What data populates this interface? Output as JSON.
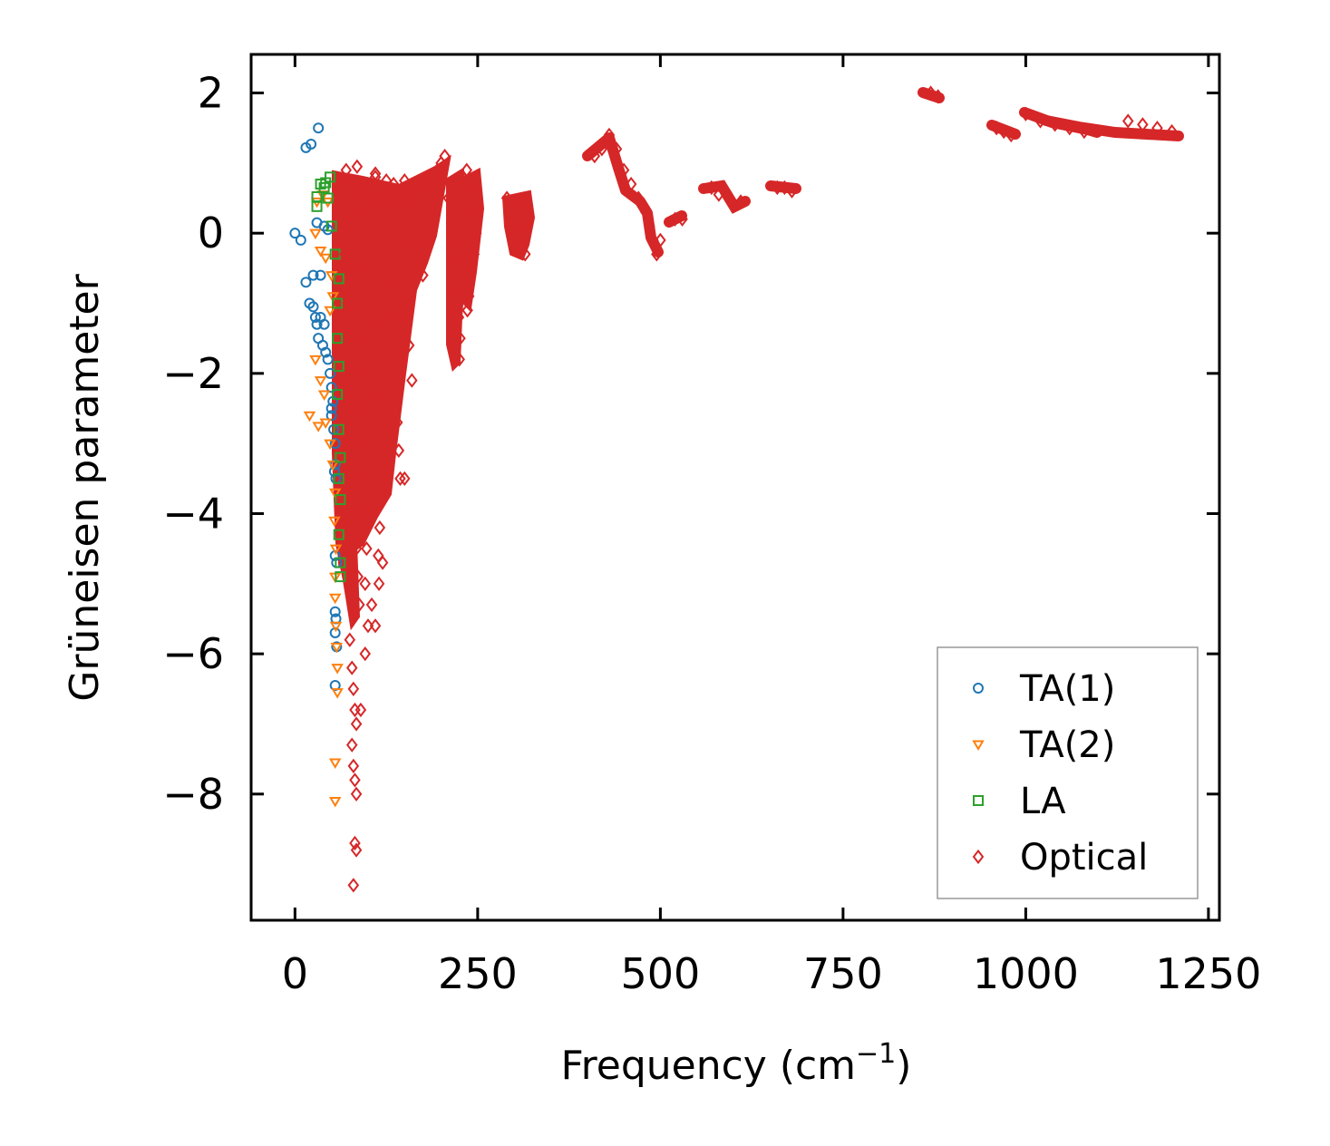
{
  "chart_data": {
    "type": "scatter",
    "title": "",
    "xlabel_base": "Frequency (cm",
    "xlabel_sup": "−1",
    "xlabel_end": ")",
    "ylabel": "Grüneisen parameter",
    "xlim": [
      -60,
      1265
    ],
    "ylim": [
      -9.8,
      2.55
    ],
    "x_ticks": [
      0,
      250,
      500,
      750,
      1000,
      1250
    ],
    "x_tick_labels": [
      "0",
      "250",
      "500",
      "750",
      "1000",
      "1250"
    ],
    "y_ticks": [
      2,
      0,
      -2,
      -4,
      -6,
      -8
    ],
    "y_tick_labels": [
      "2",
      "0",
      "−2",
      "−4",
      "−6",
      "−8"
    ],
    "legend_position": "lower-right",
    "grid": false,
    "series": [
      {
        "name": "TA(1)",
        "marker": "circle",
        "color": "#1f77b4",
        "points": [
          [
            0,
            0
          ],
          [
            8,
            -0.1
          ],
          [
            15,
            1.22
          ],
          [
            22,
            1.27
          ],
          [
            32,
            1.5
          ],
          [
            15,
            -0.7
          ],
          [
            25,
            -0.6
          ],
          [
            35,
            -0.6
          ],
          [
            30,
            0.15
          ],
          [
            40,
            0.1
          ],
          [
            45,
            0.05
          ],
          [
            20,
            -1.0
          ],
          [
            25,
            -1.05
          ],
          [
            28,
            -1.2
          ],
          [
            30,
            -1.3
          ],
          [
            35,
            -1.2
          ],
          [
            40,
            -1.3
          ],
          [
            32,
            -1.5
          ],
          [
            38,
            -1.6
          ],
          [
            42,
            -1.7
          ],
          [
            45,
            -1.8
          ],
          [
            48,
            -2.0
          ],
          [
            50,
            -2.2
          ],
          [
            52,
            -2.4
          ],
          [
            50,
            -2.6
          ],
          [
            53,
            -2.8
          ],
          [
            55,
            -3.0
          ],
          [
            55,
            -3.3
          ],
          [
            54,
            -3.4
          ],
          [
            56,
            -3.5
          ],
          [
            50,
            -2.5
          ],
          [
            55,
            -4.6
          ],
          [
            57,
            -4.7
          ],
          [
            55,
            -5.4
          ],
          [
            56,
            -5.5
          ],
          [
            55,
            -5.7
          ],
          [
            57,
            -5.9
          ],
          [
            55,
            -6.45
          ]
        ]
      },
      {
        "name": "TA(2)",
        "marker": "triangle",
        "color": "#ff7f0e",
        "points": [
          [
            30,
            0.45
          ],
          [
            38,
            0.55
          ],
          [
            45,
            0.45
          ],
          [
            28,
            0.0
          ],
          [
            35,
            -0.25
          ],
          [
            42,
            -0.35
          ],
          [
            50,
            -0.6
          ],
          [
            52,
            -0.9
          ],
          [
            48,
            -1.1
          ],
          [
            28,
            -1.8
          ],
          [
            35,
            -2.1
          ],
          [
            40,
            -2.3
          ],
          [
            20,
            -2.6
          ],
          [
            32,
            -2.75
          ],
          [
            42,
            -2.7
          ],
          [
            48,
            -3.0
          ],
          [
            52,
            -3.3
          ],
          [
            55,
            -3.7
          ],
          [
            54,
            -4.1
          ],
          [
            56,
            -4.5
          ],
          [
            55,
            -4.9
          ],
          [
            55,
            -5.2
          ],
          [
            56,
            -5.6
          ],
          [
            57,
            -5.9
          ],
          [
            58,
            -6.2
          ],
          [
            58,
            -6.55
          ],
          [
            55,
            -7.55
          ],
          [
            55,
            -8.1
          ]
        ]
      },
      {
        "name": "LA",
        "marker": "square",
        "color": "#2ca02c",
        "points": [
          [
            35,
            0.7
          ],
          [
            42,
            0.72
          ],
          [
            48,
            0.8
          ],
          [
            40,
            0.65
          ],
          [
            30,
            0.52
          ],
          [
            30,
            0.38
          ],
          [
            45,
            0.5
          ],
          [
            50,
            0.1
          ],
          [
            55,
            -0.3
          ],
          [
            60,
            -0.65
          ],
          [
            58,
            -1.0
          ],
          [
            58,
            -1.5
          ],
          [
            60,
            -1.9
          ],
          [
            58,
            -2.3
          ],
          [
            60,
            -2.8
          ],
          [
            62,
            -3.2
          ],
          [
            60,
            -3.5
          ],
          [
            62,
            -3.8
          ],
          [
            60,
            -4.3
          ],
          [
            62,
            -4.7
          ],
          [
            62,
            -4.9
          ]
        ]
      },
      {
        "name": "Optical",
        "marker": "diamond",
        "color": "#d62728",
        "points": [
          [
            70,
            0.9
          ],
          [
            75,
            0.5
          ],
          [
            72,
            0.2
          ],
          [
            68,
            -0.3
          ],
          [
            78,
            0.7
          ],
          [
            82,
            0.4
          ],
          [
            88,
            0.6
          ],
          [
            95,
            0.3
          ],
          [
            100,
            0.2
          ],
          [
            105,
            0.5
          ],
          [
            110,
            0.8
          ],
          [
            115,
            0.6
          ],
          [
            120,
            0.4
          ],
          [
            125,
            0.55
          ],
          [
            130,
            0.3
          ],
          [
            135,
            0.7
          ],
          [
            140,
            0.5
          ],
          [
            145,
            0.45
          ],
          [
            150,
            0.6
          ],
          [
            155,
            0.5
          ],
          [
            160,
            0.55
          ],
          [
            165,
            0.65
          ],
          [
            170,
            0.7
          ],
          [
            175,
            0.6
          ],
          [
            180,
            0.75
          ],
          [
            185,
            0.8
          ],
          [
            190,
            0.85
          ],
          [
            195,
            0.9
          ],
          [
            200,
            1.0
          ],
          [
            205,
            1.1
          ],
          [
            85,
            0.95
          ],
          [
            110,
            0.85
          ],
          [
            125,
            0.75
          ],
          [
            150,
            0.75
          ],
          [
            70,
            -0.5
          ],
          [
            72,
            -1.0
          ],
          [
            74,
            -1.5
          ],
          [
            76,
            -2.0
          ],
          [
            78,
            -2.5
          ],
          [
            80,
            -3.0
          ],
          [
            82,
            -3.5
          ],
          [
            80,
            -4.0
          ],
          [
            84,
            -4.5
          ],
          [
            86,
            -4.9
          ],
          [
            88,
            -5.3
          ],
          [
            90,
            -0.5
          ],
          [
            92,
            -1.0
          ],
          [
            94,
            -1.5
          ],
          [
            96,
            -2.0
          ],
          [
            98,
            -2.5
          ],
          [
            100,
            -3.0
          ],
          [
            102,
            -3.5
          ],
          [
            100,
            -4.0
          ],
          [
            98,
            -4.5
          ],
          [
            96,
            -5.0
          ],
          [
            110,
            -0.3
          ],
          [
            112,
            -0.8
          ],
          [
            114,
            -1.3
          ],
          [
            116,
            -1.8
          ],
          [
            118,
            -2.3
          ],
          [
            120,
            -2.8
          ],
          [
            122,
            -3.3
          ],
          [
            118,
            -3.8
          ],
          [
            116,
            -4.2
          ],
          [
            114,
            -4.6
          ],
          [
            130,
            -0.2
          ],
          [
            132,
            -0.7
          ],
          [
            134,
            -1.2
          ],
          [
            136,
            -1.7
          ],
          [
            138,
            -2.2
          ],
          [
            140,
            -2.7
          ],
          [
            142,
            -3.1
          ],
          [
            144,
            -3.5
          ],
          [
            150,
            -3.5
          ],
          [
            150,
            -0.1
          ],
          [
            152,
            -0.6
          ],
          [
            154,
            -1.1
          ],
          [
            156,
            -1.6
          ],
          [
            160,
            -2.1
          ],
          [
            165,
            -0.4
          ],
          [
            170,
            -0.2
          ],
          [
            175,
            -0.6
          ],
          [
            75,
            -5.8
          ],
          [
            78,
            -6.2
          ],
          [
            80,
            -6.5
          ],
          [
            82,
            -6.8
          ],
          [
            84,
            -7.0
          ],
          [
            78,
            -7.3
          ],
          [
            80,
            -7.6
          ],
          [
            82,
            -7.8
          ],
          [
            84,
            -8.0
          ],
          [
            82,
            -8.7
          ],
          [
            84,
            -8.8
          ],
          [
            80,
            -9.3
          ],
          [
            96,
            -6.0
          ],
          [
            100,
            -5.6
          ],
          [
            105,
            -5.3
          ],
          [
            110,
            -5.6
          ],
          [
            115,
            -5.0
          ],
          [
            120,
            -4.7
          ],
          [
            90,
            -6.8
          ],
          [
            210,
            0.5
          ],
          [
            215,
            0.2
          ],
          [
            218,
            -0.1
          ],
          [
            220,
            -0.4
          ],
          [
            222,
            -0.8
          ],
          [
            224,
            -1.2
          ],
          [
            226,
            -1.5
          ],
          [
            225,
            -1.8
          ],
          [
            230,
            0.8
          ],
          [
            235,
            0.9
          ],
          [
            240,
            0.6
          ],
          [
            245,
            0.3
          ],
          [
            248,
            0.0
          ],
          [
            245,
            -0.3
          ],
          [
            240,
            -0.6
          ],
          [
            238,
            -0.9
          ],
          [
            236,
            -1.1
          ],
          [
            290,
            0.5
          ],
          [
            295,
            0.35
          ],
          [
            300,
            0.2
          ],
          [
            305,
            0.0
          ],
          [
            310,
            -0.2
          ],
          [
            315,
            -0.3
          ],
          [
            305,
            0.45
          ],
          [
            300,
            0.1
          ],
          [
            310,
            0.4
          ],
          [
            410,
            1.1
          ],
          [
            420,
            1.2
          ],
          [
            430,
            1.4
          ],
          [
            440,
            1.2
          ],
          [
            450,
            0.9
          ],
          [
            460,
            0.7
          ],
          [
            470,
            0.5
          ],
          [
            480,
            0.3
          ],
          [
            485,
            0.1
          ],
          [
            490,
            -0.1
          ],
          [
            495,
            -0.3
          ],
          [
            500,
            -0.1
          ],
          [
            520,
            0.2
          ],
          [
            530,
            0.2
          ],
          [
            570,
            0.65
          ],
          [
            580,
            0.55
          ],
          [
            600,
            0.4
          ],
          [
            610,
            0.45
          ],
          [
            660,
            0.65
          ],
          [
            670,
            0.65
          ],
          [
            680,
            0.6
          ],
          [
            870,
            2.0
          ],
          [
            880,
            1.95
          ],
          [
            960,
            1.5
          ],
          [
            970,
            1.45
          ],
          [
            980,
            1.4
          ],
          [
            1000,
            1.7
          ],
          [
            1020,
            1.6
          ],
          [
            1040,
            1.55
          ],
          [
            1060,
            1.5
          ],
          [
            1080,
            1.45
          ],
          [
            1140,
            1.6
          ],
          [
            1160,
            1.55
          ],
          [
            1180,
            1.5
          ],
          [
            1200,
            1.45
          ]
        ]
      }
    ]
  }
}
